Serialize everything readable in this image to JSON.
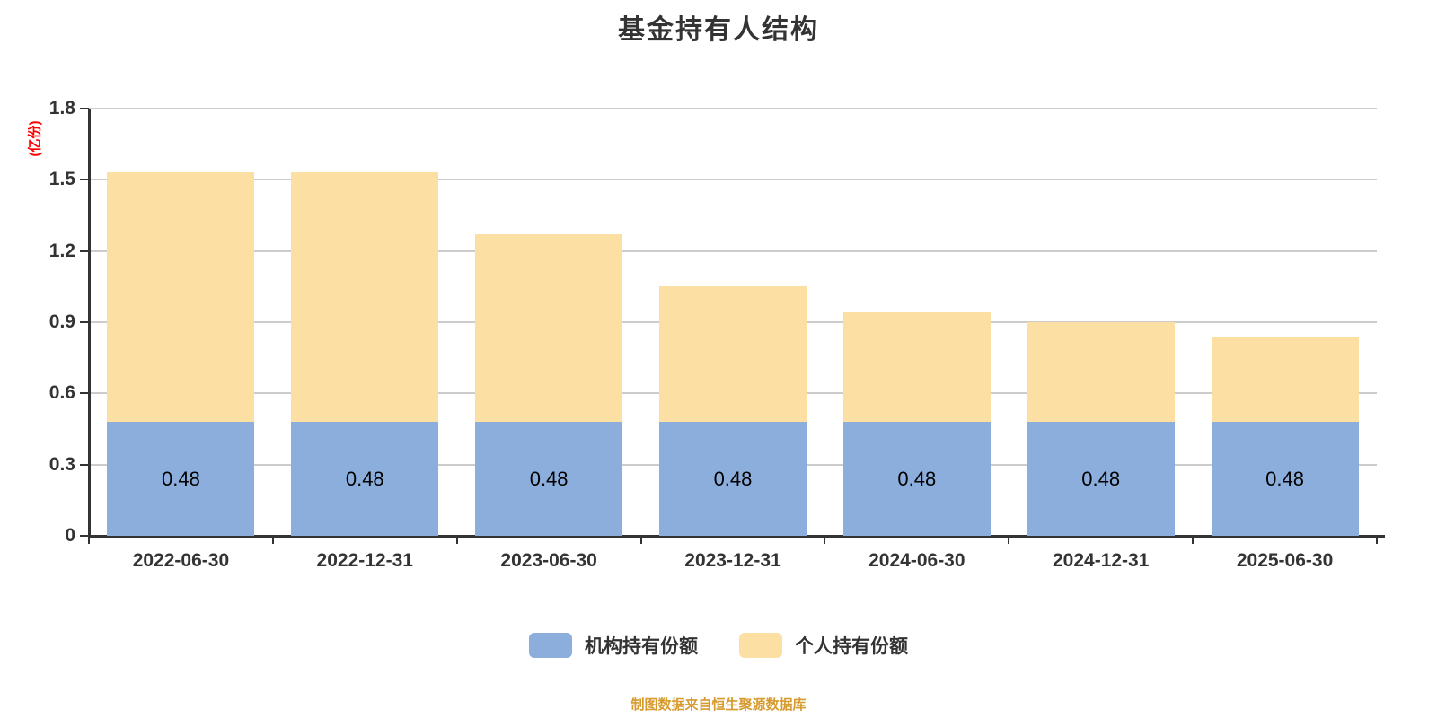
{
  "title": "基金持有人结构",
  "y_axis_unit": "(亿份)",
  "footer": "制图数据来自恒生聚源数据库",
  "colors": {
    "institution": "#8CAEDD",
    "individual": "#FCDFA3",
    "title_text": "#333333",
    "axis_text": "#333333",
    "axis_line": "#333333",
    "gridline": "#CCCCCC",
    "unit_text": "#FF0000",
    "footer_text": "#D69A2E",
    "value_label": "#000000"
  },
  "legend": [
    {
      "label": "机构持有份额",
      "color_key": "institution"
    },
    {
      "label": "个人持有份额",
      "color_key": "individual"
    }
  ],
  "chart_data": {
    "type": "bar",
    "stacked": true,
    "title": "基金持有人结构",
    "categories": [
      "2022-06-30",
      "2022-12-31",
      "2023-06-30",
      "2023-12-31",
      "2024-06-30",
      "2024-12-31",
      "2025-06-30"
    ],
    "series": [
      {
        "name": "机构持有份额",
        "color_key": "institution",
        "values": [
          0.48,
          0.48,
          0.48,
          0.48,
          0.48,
          0.48,
          0.48
        ],
        "show_value_labels": true
      },
      {
        "name": "个人持有份额",
        "color_key": "individual",
        "values": [
          1.05,
          1.05,
          0.79,
          0.57,
          0.46,
          0.42,
          0.36
        ],
        "show_value_labels": false
      }
    ],
    "stack_totals": [
      1.53,
      1.53,
      1.27,
      1.05,
      0.94,
      0.9,
      0.84
    ],
    "ylim": [
      0,
      1.8
    ],
    "yticks": [
      0,
      0.3,
      0.6,
      0.9,
      1.2,
      1.5,
      1.8
    ],
    "y_axis_unit": "(亿份)",
    "xlabel": "",
    "ylabel": "(亿份)",
    "grid": true,
    "legend_position": "bottom",
    "bar_width_ratio": 0.8
  }
}
